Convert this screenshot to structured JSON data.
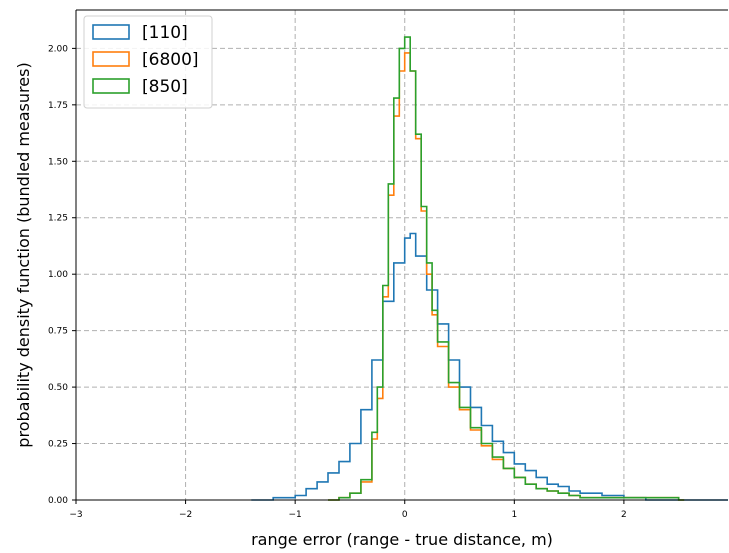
{
  "chart_data": {
    "type": "histogram-step",
    "xlabel": "range error (range - true distance, m)",
    "ylabel": "probability density function (bundled measures)",
    "xlim": [
      -3,
      2.95
    ],
    "ylim": [
      0,
      2.17
    ],
    "xticks": [
      -3,
      -2,
      -1,
      0,
      1,
      2
    ],
    "yticks": [
      0.0,
      0.25,
      0.5,
      0.75,
      1.0,
      1.25,
      1.5,
      1.75,
      2.0
    ],
    "xtick_labels": [
      "−3",
      "−2",
      "−1",
      "0",
      "1",
      "2"
    ],
    "ytick_labels": [
      "0.00",
      "0.25",
      "0.50",
      "0.75",
      "1.00",
      "1.25",
      "1.50",
      "1.75",
      "2.00"
    ],
    "grid": true,
    "legend_position": "top-left",
    "series": [
      {
        "name": "[110]",
        "color": "#1f77b4",
        "x": [
          -1.4,
          -1.2,
          -1.0,
          -0.9,
          -0.8,
          -0.7,
          -0.6,
          -0.5,
          -0.4,
          -0.3,
          -0.2,
          -0.1,
          0.0,
          0.05,
          0.1,
          0.2,
          0.3,
          0.4,
          0.5,
          0.6,
          0.7,
          0.8,
          0.9,
          1.0,
          1.1,
          1.2,
          1.3,
          1.4,
          1.5,
          1.6,
          1.8,
          2.0,
          2.2,
          2.5,
          2.9
        ],
        "y": [
          0.0,
          0.01,
          0.02,
          0.05,
          0.08,
          0.12,
          0.17,
          0.25,
          0.4,
          0.62,
          0.88,
          1.05,
          1.16,
          1.18,
          1.08,
          0.93,
          0.78,
          0.62,
          0.5,
          0.41,
          0.33,
          0.26,
          0.21,
          0.16,
          0.13,
          0.1,
          0.07,
          0.06,
          0.04,
          0.03,
          0.02,
          0.01,
          0.0,
          0.0,
          0.0
        ]
      },
      {
        "name": "[6800]",
        "color": "#ff7f0e",
        "x": [
          -0.7,
          -0.6,
          -0.5,
          -0.4,
          -0.3,
          -0.25,
          -0.2,
          -0.15,
          -0.1,
          -0.05,
          0.0,
          0.05,
          0.1,
          0.15,
          0.2,
          0.25,
          0.3,
          0.4,
          0.5,
          0.6,
          0.7,
          0.8,
          0.9,
          1.0,
          1.1,
          1.2,
          1.3,
          1.4,
          1.5,
          1.6,
          1.8,
          2.0,
          2.5
        ],
        "y": [
          0.0,
          0.01,
          0.03,
          0.08,
          0.27,
          0.45,
          0.9,
          1.35,
          1.7,
          1.9,
          1.98,
          1.9,
          1.6,
          1.28,
          1.0,
          0.82,
          0.68,
          0.5,
          0.4,
          0.31,
          0.24,
          0.18,
          0.14,
          0.1,
          0.07,
          0.05,
          0.04,
          0.03,
          0.02,
          0.01,
          0.01,
          0.01,
          0.0
        ]
      },
      {
        "name": "[850]",
        "color": "#2ca02c",
        "x": [
          -0.7,
          -0.6,
          -0.5,
          -0.4,
          -0.3,
          -0.25,
          -0.2,
          -0.15,
          -0.1,
          -0.05,
          0.0,
          0.05,
          0.1,
          0.15,
          0.2,
          0.25,
          0.3,
          0.4,
          0.5,
          0.6,
          0.7,
          0.8,
          0.9,
          1.0,
          1.1,
          1.2,
          1.3,
          1.4,
          1.5,
          1.6,
          1.8,
          2.0,
          2.5
        ],
        "y": [
          0.0,
          0.01,
          0.03,
          0.09,
          0.3,
          0.5,
          0.95,
          1.4,
          1.78,
          2.0,
          2.05,
          1.9,
          1.62,
          1.3,
          1.05,
          0.84,
          0.7,
          0.52,
          0.41,
          0.32,
          0.25,
          0.19,
          0.14,
          0.1,
          0.07,
          0.05,
          0.04,
          0.03,
          0.02,
          0.01,
          0.01,
          0.01,
          0.0
        ]
      }
    ]
  }
}
